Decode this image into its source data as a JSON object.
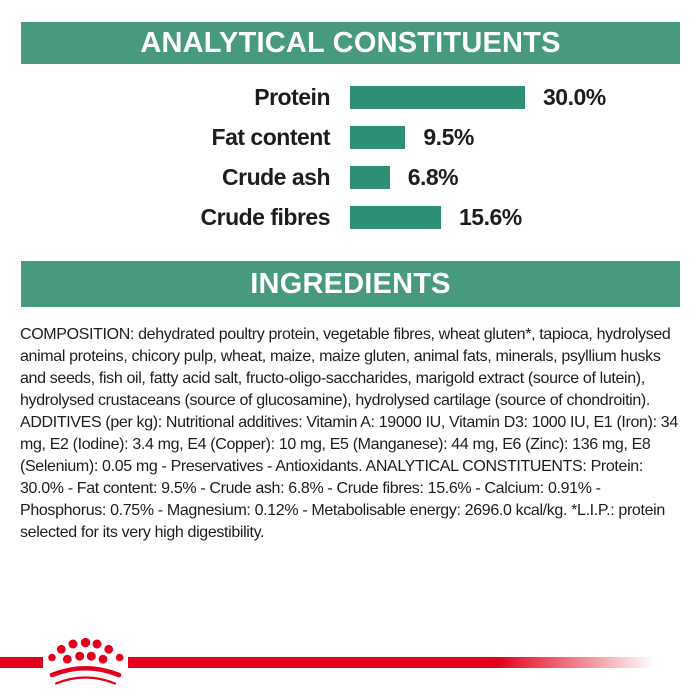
{
  "colors": {
    "banner_teal": "#47997f",
    "bar_teal": "#2f8f76",
    "brand_red": "#e2001a",
    "text": "#1d1d1b"
  },
  "sections": {
    "analytical_title": "ANALYTICAL CONSTITUENTS",
    "ingredients_title": "INGREDIENTS"
  },
  "chart_data": {
    "type": "bar",
    "orientation": "horizontal",
    "title": "ANALYTICAL CONSTITUENTS",
    "categories": [
      "Protein",
      "Fat content",
      "Crude ash",
      "Crude fibres"
    ],
    "values": [
      30.0,
      9.5,
      6.8,
      15.6
    ],
    "value_labels": [
      "30.0%",
      "9.5%",
      "6.8%",
      "15.6%"
    ],
    "unit": "%",
    "xlim": [
      0,
      30
    ],
    "grid": false,
    "legend": false,
    "bar_color": "#2f8f76"
  },
  "ingredients_text": "COMPOSITION: dehydrated poultry protein, vegetable fibres, wheat gluten*, tapioca, hydrolysed animal proteins, chicory pulp, wheat, maize, maize gluten, animal fats, minerals, psyllium husks and seeds, fish oil, fatty acid salt, fructo-oligo-saccharides, marigold extract (source of lutein), hydrolysed crustaceans (source of glucosamine), hydrolysed cartilage (source of chondroitin). ADDITIVES (per kg): Nutritional additives: Vitamin A: 19000 IU, Vitamin D3: 1000 IU, E1 (Iron): 34 mg, E2 (Iodine): 3.4 mg, E4 (Copper): 10 mg, E5 (Manganese): 44 mg, E6 (Zinc): 136 mg, E8 (Selenium): 0.05 mg - Preservatives - Antioxidants. ANALYTICAL CONSTITUENTS: Protein: 30.0% - Fat content: 9.5% - Crude ash: 6.8% - Crude fibres: 15.6% - Calcium: 0.91% - Phosphorus: 0.75% - Magnesium: 0.12% - Metabolisable energy: 2696.0 kcal/kg. *L.I.P.: protein selected for its very high digestibility.",
  "logo": {
    "name": "royal-canin-crown"
  }
}
